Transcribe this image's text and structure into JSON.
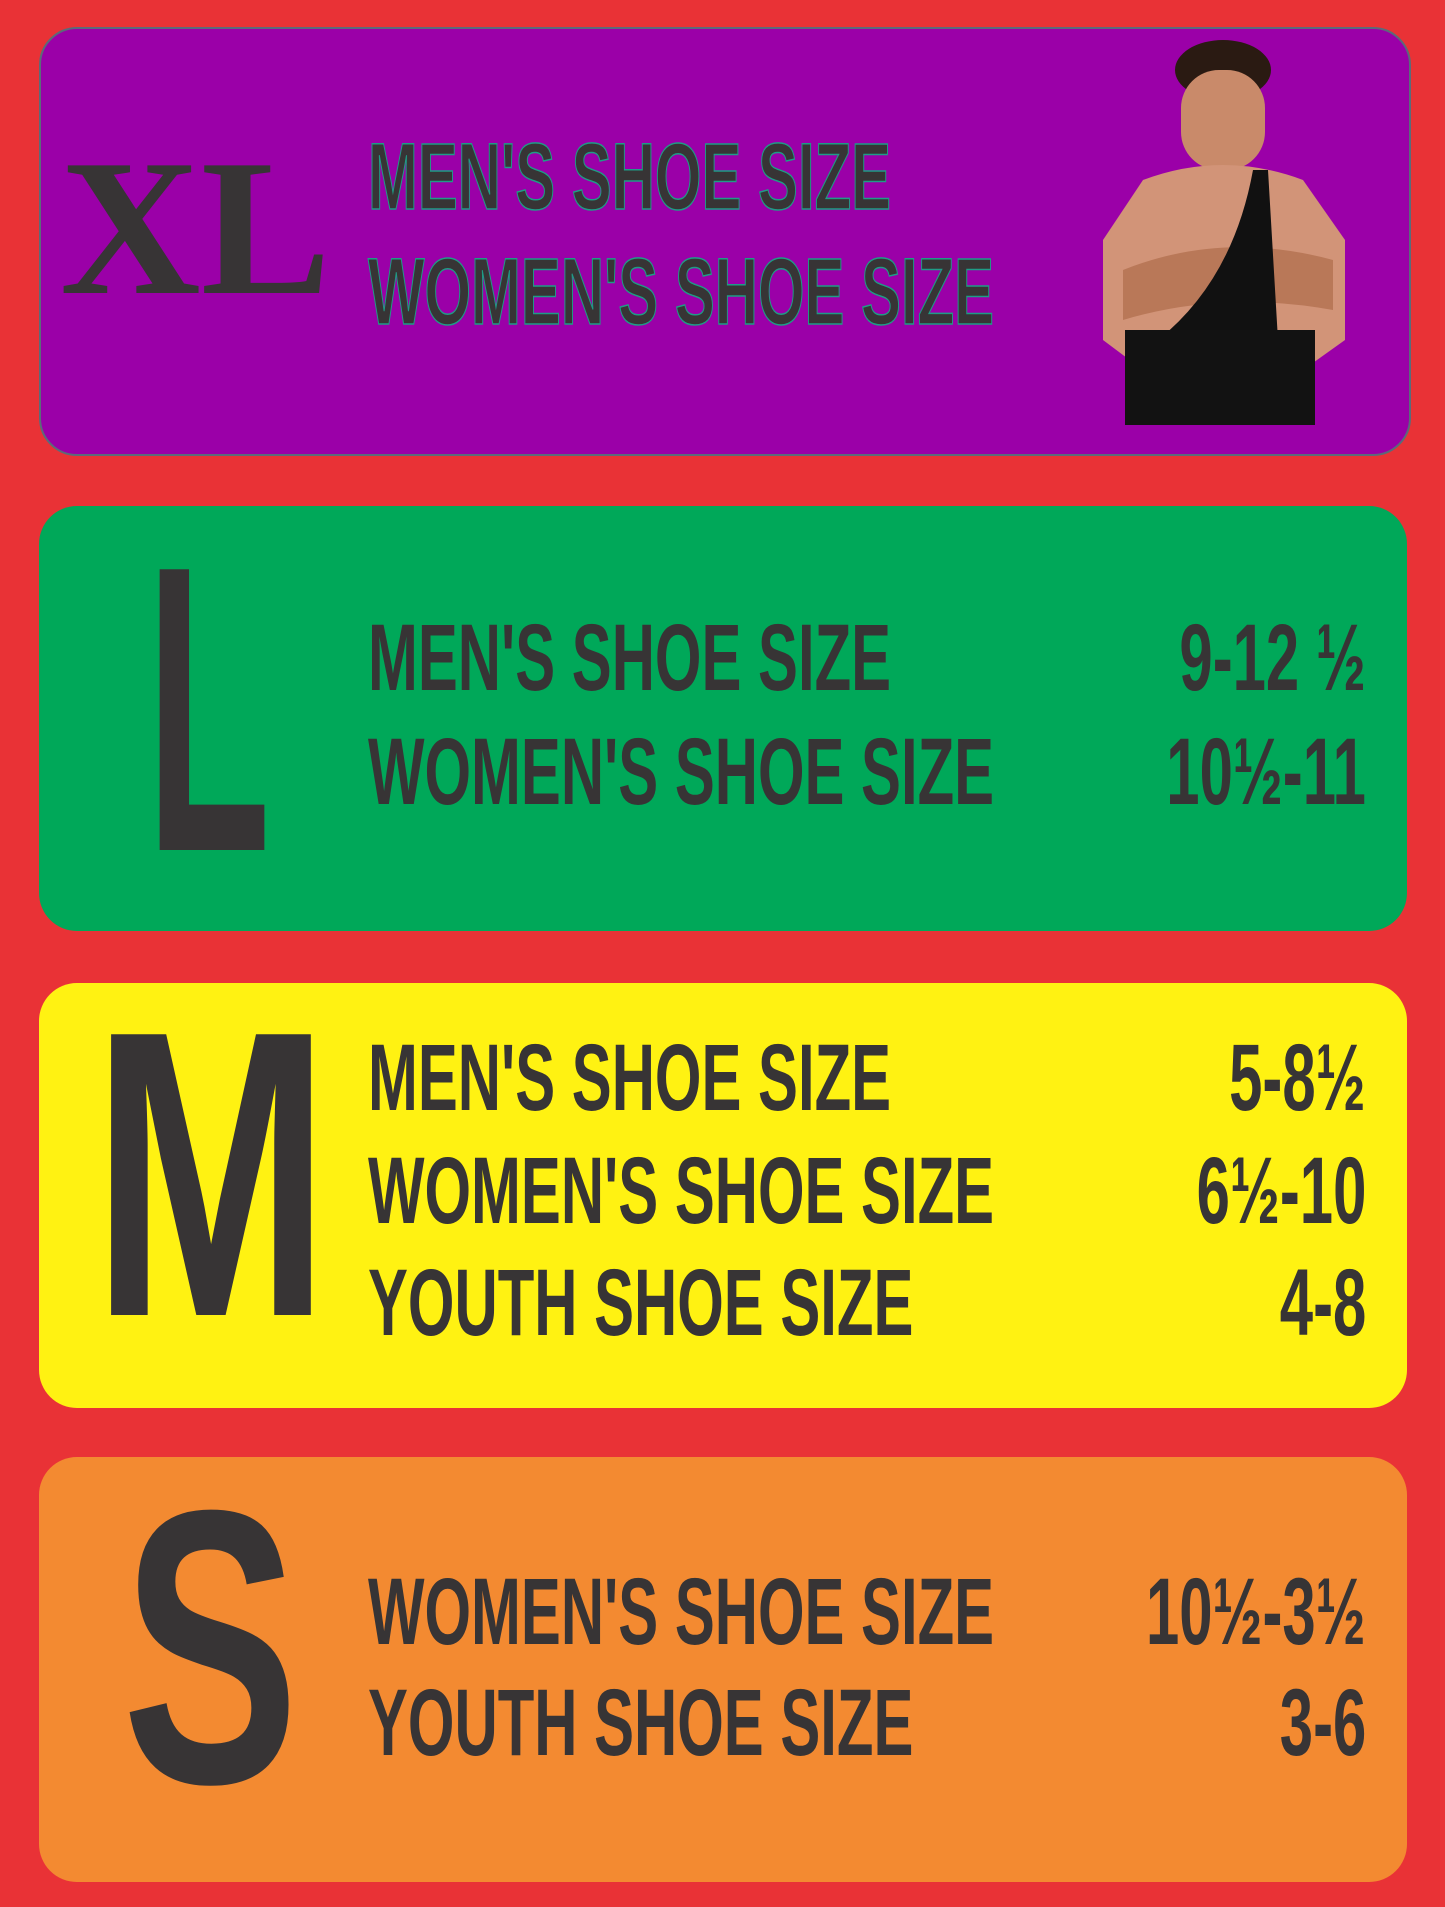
{
  "colors": {
    "background": "#e93236",
    "xl": "#9b00a8",
    "l": "#00a859",
    "m": "#fff212",
    "s": "#f38a31",
    "text": "#373435"
  },
  "sizes": [
    {
      "size": "XL",
      "rows": [
        {
          "label": "MEN'S SHOE SIZE",
          "value": ""
        },
        {
          "label": "WOMEN'S SHOE SIZE",
          "value": ""
        }
      ]
    },
    {
      "size": "L",
      "rows": [
        {
          "label": "MEN'S SHOE SIZE",
          "value": "9-12 ½"
        },
        {
          "label": "WOMEN'S SHOE SIZE",
          "value": "10½-11"
        }
      ]
    },
    {
      "size": "M",
      "rows": [
        {
          "label": "MEN'S SHOE SIZE",
          "value": "5-8½"
        },
        {
          "label": "WOMEN'S SHOE SIZE",
          "value": "6½-10"
        },
        {
          "label": "YOUTH SHOE SIZE",
          "value": "4-8"
        }
      ]
    },
    {
      "size": "S",
      "rows": [
        {
          "label": "WOMEN'S SHOE SIZE",
          "value": "10½-3½"
        },
        {
          "label": "YOUTH SHOE SIZE",
          "value": "3-6"
        }
      ]
    }
  ],
  "xl_image": "wrestler-photo"
}
